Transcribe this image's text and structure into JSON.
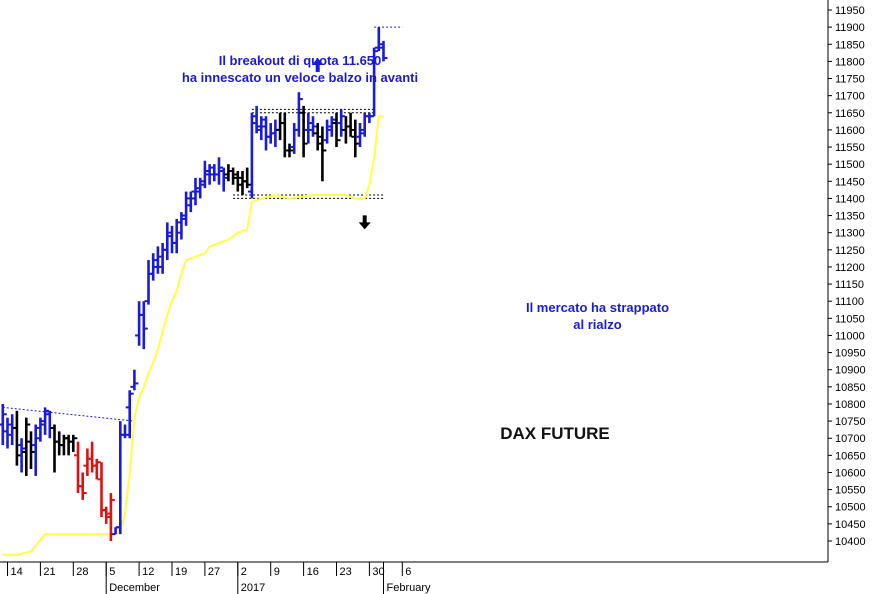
{
  "chart_data": {
    "type": "bar",
    "subtype": "ohlc",
    "title": "DAX FUTURE",
    "annotations": [
      {
        "id": "breakout",
        "lines": [
          "Il breakout di quota 11.650",
          "ha innescato un veloce balzo in avanti"
        ]
      },
      {
        "id": "rally",
        "lines": [
          "Il mercato ha strappato",
          "al rialzo"
        ]
      }
    ],
    "y_axis": {
      "range": [
        10380,
        11975
      ],
      "ticks": [
        10400,
        10450,
        10500,
        10550,
        10600,
        10650,
        10700,
        10750,
        10800,
        10850,
        10900,
        10950,
        11000,
        11050,
        11100,
        11150,
        11200,
        11250,
        11300,
        11350,
        11400,
        11450,
        11500,
        11550,
        11600,
        11650,
        11700,
        11750,
        11800,
        11850,
        11900,
        11950
      ]
    },
    "x_axis": {
      "day_labels": [
        {
          "day": 0,
          "label": "14"
        },
        {
          "day": 7,
          "label": "21"
        },
        {
          "day": 14,
          "label": "28"
        },
        {
          "day": 21,
          "label": "5"
        },
        {
          "day": 28,
          "label": "12"
        },
        {
          "day": 35,
          "label": "19"
        },
        {
          "day": 42,
          "label": "27"
        },
        {
          "day": 49,
          "label": "2"
        },
        {
          "day": 56,
          "label": "9"
        },
        {
          "day": 63,
          "label": "16"
        },
        {
          "day": 70,
          "label": "23"
        },
        {
          "day": 77,
          "label": "30"
        },
        {
          "day": 84,
          "label": "6"
        }
      ],
      "month_labels": [
        {
          "day": 21,
          "label": "December"
        },
        {
          "day": 49,
          "label": "2017"
        },
        {
          "day": 80,
          "label": "February"
        }
      ]
    },
    "colors": {
      "up": "#1a1adc",
      "neutral": "#000000",
      "down": "#e01010",
      "trailing_stop": "#ffff44",
      "line": "#1a1adc"
    },
    "bars": [
      {
        "day": -1,
        "o": 10740,
        "h": 10800,
        "l": 10680,
        "c": 10770,
        "color": "up"
      },
      {
        "day": 0,
        "o": 10720,
        "h": 10760,
        "l": 10670,
        "c": 10740,
        "color": "up"
      },
      {
        "day": 1,
        "o": 10710,
        "h": 10770,
        "l": 10680,
        "c": 10730,
        "color": "up"
      },
      {
        "day": 2,
        "o": 10730,
        "h": 10780,
        "l": 10620,
        "c": 10650,
        "color": "neutral"
      },
      {
        "day": 3,
        "o": 10680,
        "h": 10700,
        "l": 10600,
        "c": 10670,
        "color": "up"
      },
      {
        "day": 4,
        "o": 10660,
        "h": 10760,
        "l": 10590,
        "c": 10740,
        "color": "neutral"
      },
      {
        "day": 5,
        "o": 10690,
        "h": 10720,
        "l": 10610,
        "c": 10660,
        "color": "neutral"
      },
      {
        "day": 6,
        "o": 10680,
        "h": 10740,
        "l": 10590,
        "c": 10730,
        "color": "up"
      },
      {
        "day": 7,
        "o": 10700,
        "h": 10760,
        "l": 10690,
        "c": 10750,
        "color": "up"
      },
      {
        "day": 8,
        "o": 10740,
        "h": 10790,
        "l": 10710,
        "c": 10780,
        "color": "up"
      },
      {
        "day": 9,
        "o": 10770,
        "h": 10780,
        "l": 10700,
        "c": 10730,
        "color": "up"
      },
      {
        "day": 10,
        "o": 10730,
        "h": 10740,
        "l": 10600,
        "c": 10690,
        "color": "neutral"
      },
      {
        "day": 11,
        "o": 10690,
        "h": 10720,
        "l": 10650,
        "c": 10680,
        "color": "neutral"
      },
      {
        "day": 12,
        "o": 10680,
        "h": 10710,
        "l": 10650,
        "c": 10700,
        "color": "neutral"
      },
      {
        "day": 13,
        "o": 10700,
        "h": 10710,
        "l": 10650,
        "c": 10690,
        "color": "neutral"
      },
      {
        "day": 14,
        "o": 10690,
        "h": 10710,
        "l": 10660,
        "c": 10700,
        "color": "neutral"
      },
      {
        "day": 15,
        "o": 10650,
        "h": 10690,
        "l": 10540,
        "c": 10560,
        "color": "down"
      },
      {
        "day": 16,
        "o": 10560,
        "h": 10600,
        "l": 10520,
        "c": 10540,
        "color": "down"
      },
      {
        "day": 17,
        "o": 10620,
        "h": 10670,
        "l": 10590,
        "c": 10640,
        "color": "down"
      },
      {
        "day": 18,
        "o": 10640,
        "h": 10690,
        "l": 10600,
        "c": 10620,
        "color": "down"
      },
      {
        "day": 19,
        "o": 10620,
        "h": 10640,
        "l": 10580,
        "c": 10630,
        "color": "down"
      },
      {
        "day": 20,
        "o": 10580,
        "h": 10630,
        "l": 10470,
        "c": 10490,
        "color": "down"
      },
      {
        "day": 21,
        "o": 10490,
        "h": 10500,
        "l": 10450,
        "c": 10470,
        "color": "down"
      },
      {
        "day": 22,
        "o": 10480,
        "h": 10540,
        "l": 10400,
        "c": 10520,
        "color": "down"
      },
      {
        "day": 23,
        "o": 10420,
        "h": 10440,
        "l": 10420,
        "c": 10440,
        "color": "up"
      },
      {
        "day": 24,
        "o": 10440,
        "h": 10750,
        "l": 10420,
        "c": 10710,
        "color": "up"
      },
      {
        "day": 25,
        "o": 10710,
        "h": 10740,
        "l": 10700,
        "c": 10710,
        "color": "up"
      },
      {
        "day": 26,
        "o": 10790,
        "h": 10840,
        "l": 10700,
        "c": 10830,
        "color": "up"
      },
      {
        "day": 27,
        "o": 10850,
        "h": 10900,
        "l": 10840,
        "c": 10860,
        "color": "up"
      },
      {
        "day": 28,
        "o": 11000,
        "h": 11100,
        "l": 10970,
        "c": 11060,
        "color": "up"
      },
      {
        "day": 29,
        "o": 11060,
        "h": 11100,
        "l": 10960,
        "c": 11020,
        "color": "up"
      },
      {
        "day": 30,
        "o": 11100,
        "h": 11220,
        "l": 11090,
        "c": 11180,
        "color": "up"
      },
      {
        "day": 31,
        "o": 11180,
        "h": 11240,
        "l": 11160,
        "c": 11200,
        "color": "up"
      },
      {
        "day": 32,
        "o": 11220,
        "h": 11260,
        "l": 11180,
        "c": 11230,
        "color": "up"
      },
      {
        "day": 33,
        "o": 11200,
        "h": 11270,
        "l": 11180,
        "c": 11250,
        "color": "up"
      },
      {
        "day": 34,
        "o": 11250,
        "h": 11330,
        "l": 11220,
        "c": 11300,
        "color": "up"
      },
      {
        "day": 35,
        "o": 11290,
        "h": 11320,
        "l": 11240,
        "c": 11270,
        "color": "up"
      },
      {
        "day": 36,
        "o": 11270,
        "h": 11340,
        "l": 11240,
        "c": 11330,
        "color": "up"
      },
      {
        "day": 37,
        "o": 11300,
        "h": 11360,
        "l": 11280,
        "c": 11350,
        "color": "up"
      },
      {
        "day": 38,
        "o": 11340,
        "h": 11420,
        "l": 11320,
        "c": 11400,
        "color": "up"
      },
      {
        "day": 39,
        "o": 11380,
        "h": 11420,
        "l": 11360,
        "c": 11400,
        "color": "up"
      },
      {
        "day": 40,
        "o": 11420,
        "h": 11460,
        "l": 11380,
        "c": 11430,
        "color": "up"
      },
      {
        "day": 41,
        "o": 11420,
        "h": 11460,
        "l": 11400,
        "c": 11450,
        "color": "up"
      },
      {
        "day": 42,
        "o": 11440,
        "h": 11510,
        "l": 11430,
        "c": 11480,
        "color": "up"
      },
      {
        "day": 43,
        "o": 11470,
        "h": 11500,
        "l": 11440,
        "c": 11490,
        "color": "up"
      },
      {
        "day": 44,
        "o": 11470,
        "h": 11500,
        "l": 11450,
        "c": 11470,
        "color": "up"
      },
      {
        "day": 45,
        "o": 11470,
        "h": 11520,
        "l": 11440,
        "c": 11490,
        "color": "up"
      },
      {
        "day": 46,
        "o": 11480,
        "h": 11490,
        "l": 11420,
        "c": 11460,
        "color": "up"
      },
      {
        "day": 47,
        "o": 11470,
        "h": 11500,
        "l": 11450,
        "c": 11480,
        "color": "neutral"
      },
      {
        "day": 48,
        "o": 11480,
        "h": 11490,
        "l": 11440,
        "c": 11460,
        "color": "neutral"
      },
      {
        "day": 49,
        "o": 11470,
        "h": 11480,
        "l": 11420,
        "c": 11440,
        "color": "neutral"
      },
      {
        "day": 50,
        "o": 11460,
        "h": 11480,
        "l": 11410,
        "c": 11450,
        "color": "neutral"
      },
      {
        "day": 51,
        "o": 11450,
        "h": 11490,
        "l": 11430,
        "c": 11440,
        "color": "neutral"
      },
      {
        "day": 52,
        "o": 11420,
        "h": 11650,
        "l": 11400,
        "c": 11640,
        "color": "up"
      },
      {
        "day": 53,
        "o": 11620,
        "h": 11670,
        "l": 11590,
        "c": 11610,
        "color": "up"
      },
      {
        "day": 54,
        "o": 11600,
        "h": 11640,
        "l": 11570,
        "c": 11630,
        "color": "up"
      },
      {
        "day": 55,
        "o": 11610,
        "h": 11640,
        "l": 11540,
        "c": 11580,
        "color": "up"
      },
      {
        "day": 56,
        "o": 11580,
        "h": 11620,
        "l": 11560,
        "c": 11590,
        "color": "up"
      },
      {
        "day": 57,
        "o": 11590,
        "h": 11630,
        "l": 11550,
        "c": 11600,
        "color": "up"
      },
      {
        "day": 58,
        "o": 11600,
        "h": 11650,
        "l": 11570,
        "c": 11620,
        "color": "neutral"
      },
      {
        "day": 59,
        "o": 11620,
        "h": 11650,
        "l": 11520,
        "c": 11540,
        "color": "neutral"
      },
      {
        "day": 60,
        "o": 11540,
        "h": 11560,
        "l": 11520,
        "c": 11540,
        "color": "neutral"
      },
      {
        "day": 61,
        "o": 11550,
        "h": 11620,
        "l": 11530,
        "c": 11600,
        "color": "up"
      },
      {
        "day": 62,
        "o": 11600,
        "h": 11710,
        "l": 11580,
        "c": 11690,
        "color": "up"
      },
      {
        "day": 63,
        "o": 11650,
        "h": 11670,
        "l": 11520,
        "c": 11560,
        "color": "neutral"
      },
      {
        "day": 64,
        "o": 11600,
        "h": 11650,
        "l": 11560,
        "c": 11620,
        "color": "up"
      },
      {
        "day": 65,
        "o": 11600,
        "h": 11640,
        "l": 11580,
        "c": 11610,
        "color": "up"
      },
      {
        "day": 66,
        "o": 11590,
        "h": 11620,
        "l": 11540,
        "c": 11560,
        "color": "neutral"
      },
      {
        "day": 67,
        "o": 11580,
        "h": 11610,
        "l": 11450,
        "c": 11540,
        "color": "neutral"
      },
      {
        "day": 68,
        "o": 11570,
        "h": 11630,
        "l": 11560,
        "c": 11610,
        "color": "up"
      },
      {
        "day": 69,
        "o": 11600,
        "h": 11640,
        "l": 11580,
        "c": 11630,
        "color": "up"
      },
      {
        "day": 70,
        "o": 11620,
        "h": 11650,
        "l": 11550,
        "c": 11570,
        "color": "neutral"
      },
      {
        "day": 71,
        "o": 11620,
        "h": 11660,
        "l": 11580,
        "c": 11640,
        "color": "up"
      },
      {
        "day": 72,
        "o": 11600,
        "h": 11640,
        "l": 11560,
        "c": 11610,
        "color": "neutral"
      },
      {
        "day": 73,
        "o": 11610,
        "h": 11650,
        "l": 11580,
        "c": 11600,
        "color": "neutral"
      },
      {
        "day": 74,
        "o": 11580,
        "h": 11630,
        "l": 11520,
        "c": 11560,
        "color": "neutral"
      },
      {
        "day": 75,
        "o": 11580,
        "h": 11620,
        "l": 11550,
        "c": 11590,
        "color": "up"
      },
      {
        "day": 76,
        "o": 11600,
        "h": 11650,
        "l": 11580,
        "c": 11640,
        "color": "up"
      },
      {
        "day": 77,
        "o": 11640,
        "h": 11650,
        "l": 11620,
        "c": 11640,
        "color": "up"
      },
      {
        "day": 78,
        "o": 11640,
        "h": 11840,
        "l": 11640,
        "c": 11830,
        "color": "up"
      },
      {
        "day": 79,
        "o": 11840,
        "h": 11900,
        "l": 11830,
        "c": 11850,
        "color": "up"
      },
      {
        "day": 80,
        "o": 11840,
        "h": 11860,
        "l": 11800,
        "c": 11810,
        "color": "up"
      }
    ],
    "trailing_stop": [
      [
        -1,
        10360
      ],
      [
        2,
        10360
      ],
      [
        5,
        10370
      ],
      [
        8,
        10420
      ],
      [
        10,
        10420
      ],
      [
        13,
        10420
      ],
      [
        16,
        10420
      ],
      [
        19,
        10420
      ],
      [
        23,
        10420
      ],
      [
        24,
        10430
      ],
      [
        25,
        10480
      ],
      [
        26,
        10600
      ],
      [
        27,
        10760
      ],
      [
        28,
        10820
      ],
      [
        29,
        10850
      ],
      [
        30,
        10890
      ],
      [
        31,
        10920
      ],
      [
        32,
        10960
      ],
      [
        33,
        11010
      ],
      [
        34,
        11060
      ],
      [
        35,
        11100
      ],
      [
        36,
        11130
      ],
      [
        37,
        11180
      ],
      [
        38,
        11220
      ],
      [
        40,
        11230
      ],
      [
        42,
        11240
      ],
      [
        43,
        11260
      ],
      [
        45,
        11270
      ],
      [
        47,
        11280
      ],
      [
        49,
        11300
      ],
      [
        51,
        11310
      ],
      [
        52,
        11390
      ],
      [
        54,
        11400
      ],
      [
        57,
        11410
      ],
      [
        60,
        11400
      ],
      [
        65,
        11410
      ],
      [
        69,
        11410
      ],
      [
        72,
        11410
      ],
      [
        74,
        11400
      ],
      [
        76,
        11400
      ],
      [
        77,
        11440
      ],
      [
        78,
        11520
      ],
      [
        79,
        11640
      ],
      [
        80,
        11640
      ]
    ],
    "trend_line": {
      "from": [
        -1,
        10790
      ],
      "to": [
        27,
        10750
      ]
    },
    "levels": [
      {
        "value": 11660,
        "from": 52,
        "to": 78
      },
      {
        "value": 11650,
        "from": 52,
        "to": 78
      },
      {
        "value": 11410,
        "from": 48,
        "to": 80
      },
      {
        "value": 11400,
        "from": 48,
        "to": 80
      },
      {
        "value": 11900,
        "from": 78,
        "to": 84
      }
    ],
    "arrows": [
      {
        "id": "up",
        "day": 66,
        "value": 11810,
        "direction": "up",
        "color": "#1a1adc"
      },
      {
        "id": "down",
        "day": 76,
        "value": 11330,
        "direction": "down",
        "color": "#000000"
      }
    ]
  }
}
